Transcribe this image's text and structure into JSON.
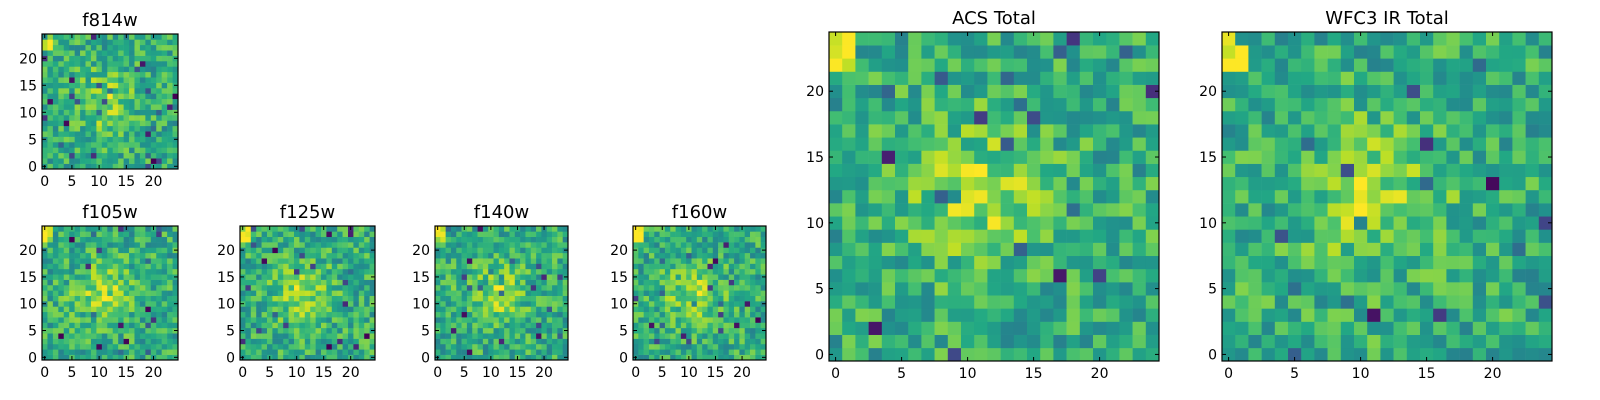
{
  "chart_data": [
    {
      "type": "heatmap",
      "title": "f814w",
      "xticks": [
        0,
        5,
        10,
        15,
        20
      ],
      "yticks": [
        0,
        5,
        10,
        15,
        20
      ],
      "grid_size": 25,
      "xlim": [
        -0.5,
        24.5
      ],
      "ylim": [
        -0.5,
        24.5
      ],
      "colormap": "viridis",
      "seed": 3
    },
    {
      "type": "heatmap",
      "title": "f105w",
      "xticks": [
        0,
        5,
        10,
        15,
        20
      ],
      "yticks": [
        0,
        5,
        10,
        15,
        20
      ],
      "grid_size": 25,
      "xlim": [
        -0.5,
        24.5
      ],
      "ylim": [
        -0.5,
        24.5
      ],
      "colormap": "viridis",
      "seed": 11
    },
    {
      "type": "heatmap",
      "title": "f125w",
      "xticks": [
        0,
        5,
        10,
        15,
        20
      ],
      "yticks": [
        0,
        5,
        10,
        15,
        20
      ],
      "grid_size": 25,
      "xlim": [
        -0.5,
        24.5
      ],
      "ylim": [
        -0.5,
        24.5
      ],
      "colormap": "viridis",
      "seed": 17
    },
    {
      "type": "heatmap",
      "title": "f140w",
      "xticks": [
        0,
        5,
        10,
        15,
        20
      ],
      "yticks": [
        0,
        5,
        10,
        15,
        20
      ],
      "grid_size": 25,
      "xlim": [
        -0.5,
        24.5
      ],
      "ylim": [
        -0.5,
        24.5
      ],
      "colormap": "viridis",
      "seed": 23
    },
    {
      "type": "heatmap",
      "title": "f160w",
      "xticks": [
        0,
        5,
        10,
        15,
        20
      ],
      "yticks": [
        0,
        5,
        10,
        15,
        20
      ],
      "grid_size": 25,
      "xlim": [
        -0.5,
        24.5
      ],
      "ylim": [
        -0.5,
        24.5
      ],
      "colormap": "viridis",
      "seed": 31
    },
    {
      "type": "heatmap",
      "title": "ACS Total",
      "xticks": [
        0,
        5,
        10,
        15,
        20
      ],
      "yticks": [
        0,
        5,
        10,
        15,
        20
      ],
      "grid_size": 25,
      "xlim": [
        -0.5,
        24.5
      ],
      "ylim": [
        -0.5,
        24.5
      ],
      "colormap": "viridis",
      "seed": 41
    },
    {
      "type": "heatmap",
      "title": "WFC3 IR Total",
      "xticks": [
        0,
        5,
        10,
        15,
        20
      ],
      "yticks": [
        0,
        5,
        10,
        15,
        20
      ],
      "grid_size": 25,
      "xlim": [
        -0.5,
        24.5
      ],
      "ylim": [
        -0.5,
        24.5
      ],
      "colormap": "viridis",
      "seed": 53
    }
  ]
}
